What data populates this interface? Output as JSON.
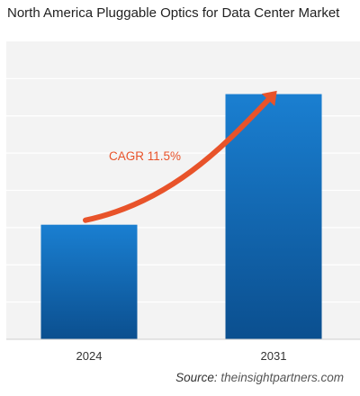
{
  "title": "North America Pluggable Optics for Data Center Market",
  "source_prefix": "Source:",
  "source_site": "theinsightpartners.com",
  "annotation": "CAGR 11.5%",
  "colors": {
    "bar_top": "#1a7fd1",
    "bar_bottom": "#0b4f8f",
    "arrow": "#e8532a",
    "annotation": "#e8532a",
    "background": "#f3f3f3",
    "grid": "#ffffff"
  },
  "chart_data": {
    "type": "bar",
    "categories": [
      "2024",
      "2031"
    ],
    "values": [
      1.0,
      2.14
    ],
    "ylim": [
      0,
      2.6
    ],
    "grid": true,
    "y_axis_labels_shown": false,
    "annotations": [
      {
        "text": "CAGR 11.5%",
        "kind": "growth-arrow",
        "from": "2024",
        "to": "2031"
      }
    ]
  }
}
